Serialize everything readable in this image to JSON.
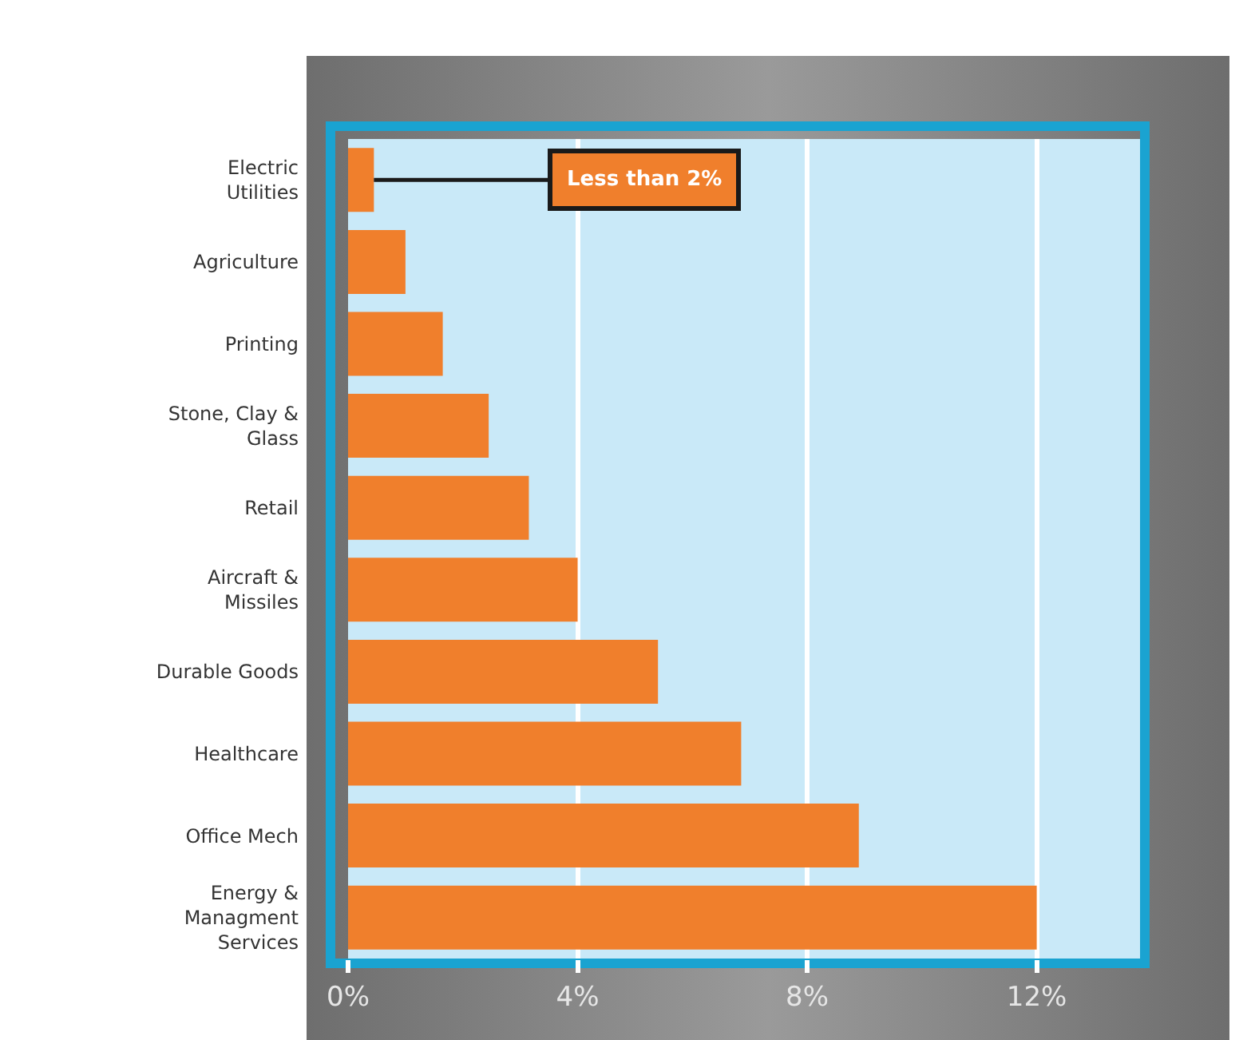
{
  "chart_data": {
    "type": "bar",
    "orientation": "horizontal",
    "categories": [
      "Electric Utilities",
      "Agriculture",
      "Printing",
      "Stone, Clay & Glass",
      "Retail",
      "Aircraft & Missiles",
      "Durable Goods",
      "Healthcare",
      "Office Mech",
      "Energy & Managment Services"
    ],
    "values": [
      0.45,
      1.0,
      1.65,
      2.45,
      3.15,
      4.0,
      5.4,
      6.85,
      8.9,
      12.0
    ],
    "color": "#f07f2c",
    "xlim": [
      0,
      13.8
    ],
    "xticks": [
      {
        "value": 0,
        "label": "0%"
      },
      {
        "value": 4,
        "label": "4%"
      },
      {
        "value": 8,
        "label": "8%"
      },
      {
        "value": 12,
        "label": "12%"
      }
    ],
    "grid": "x",
    "annotations": [
      {
        "text": "Less than 2%",
        "x": 0.45,
        "y": "Electric Utilities"
      }
    ]
  }
}
